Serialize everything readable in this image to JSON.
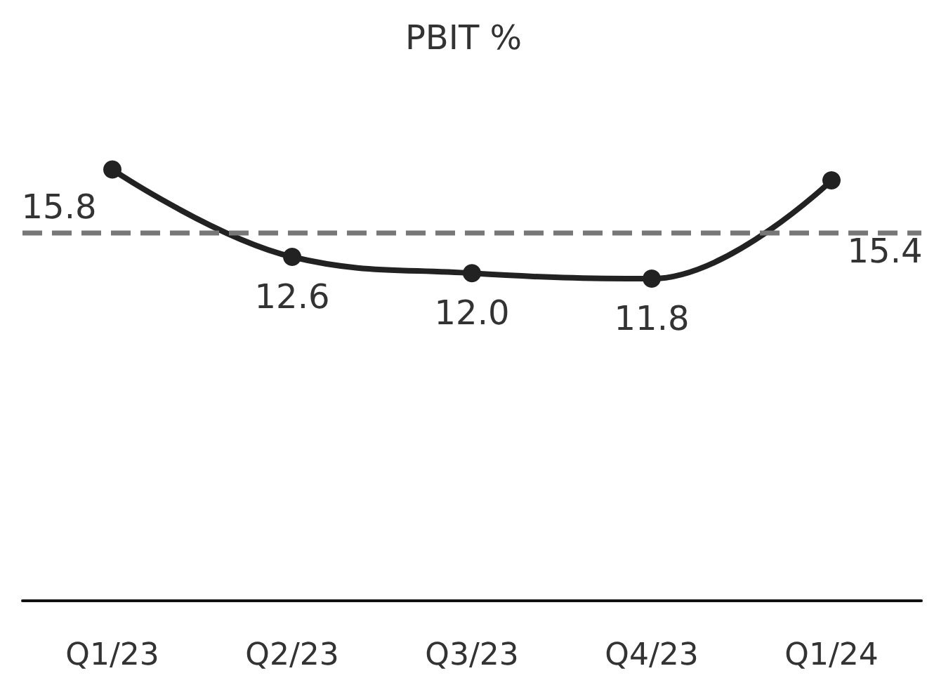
{
  "chart_data": {
    "type": "line",
    "title": "PBIT %",
    "categories": [
      "Q1/23",
      "Q2/23",
      "Q3/23",
      "Q4/23",
      "Q1/24"
    ],
    "series": [
      {
        "color": "#222222",
        "values": [
          15.8,
          12.6,
          12.0,
          11.8,
          15.4
        ],
        "value_labels": [
          "15.8",
          "12.6",
          "12.0",
          "11.8",
          "15.4"
        ]
      }
    ],
    "tick_labels": "x",
    "marker": "circle",
    "line_style": "solid",
    "ref_lines": [
      {
        "axis": "y",
        "value": 13.5,
        "color": "#777777",
        "line_style": "dashed"
      }
    ]
  }
}
